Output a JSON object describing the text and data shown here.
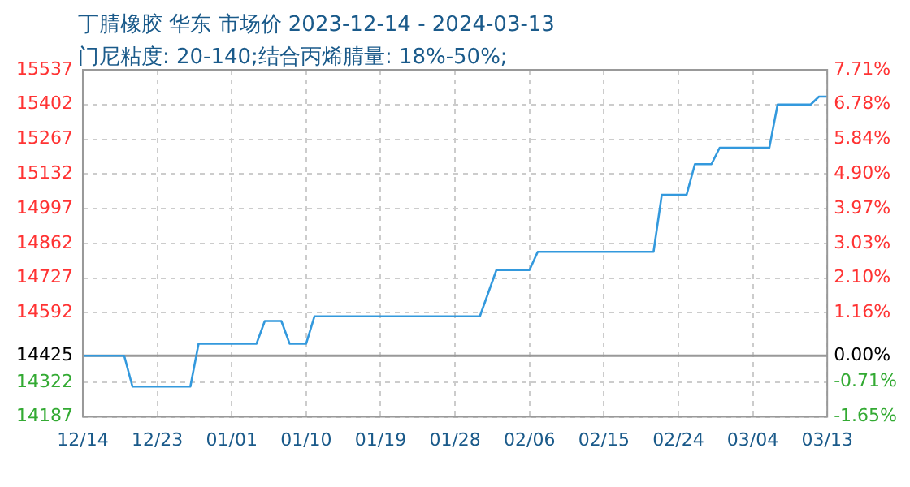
{
  "chart_data": {
    "type": "line",
    "title": "丁腈橡胶 华东 市场价 2023-12-14 - 2024-03-13",
    "subtitle": "门尼粘度: 20-140;结合丙烯腈量: 18%-50%;",
    "x": [
      "2023-12-14",
      "2023-12-19",
      "2023-12-20",
      "2023-12-27",
      "2023-12-28",
      "2024-01-04",
      "2024-01-05",
      "2024-01-07",
      "2024-01-08",
      "2024-01-10",
      "2024-01-11",
      "2024-01-31",
      "2024-02-02",
      "2024-02-06",
      "2024-02-07",
      "2024-02-21",
      "2024-02-22",
      "2024-02-25",
      "2024-02-26",
      "2024-02-28",
      "2024-02-29",
      "2024-03-06",
      "2024-03-07",
      "2024-03-11",
      "2024-03-12",
      "2024-03-13"
    ],
    "series": [
      {
        "color": "#3399dd",
        "values": [
          14425,
          14425,
          14305,
          14305,
          14472,
          14472,
          14560,
          14560,
          14472,
          14472,
          14578,
          14578,
          14758,
          14758,
          14829,
          14829,
          15051,
          15051,
          15170,
          15170,
          15234,
          15234,
          15402,
          15402,
          15433,
          15433
        ]
      }
    ],
    "xlim": [
      "2023-12-14",
      "2024-03-13"
    ],
    "xticks": [
      {
        "value": "2023-12-14",
        "label": "12/14"
      },
      {
        "value": "2023-12-23",
        "label": "12/23"
      },
      {
        "value": "2024-01-01",
        "label": "01/01"
      },
      {
        "value": "2024-01-10",
        "label": "01/10"
      },
      {
        "value": "2024-01-19",
        "label": "01/19"
      },
      {
        "value": "2024-01-28",
        "label": "01/28"
      },
      {
        "value": "2024-02-06",
        "label": "02/06"
      },
      {
        "value": "2024-02-15",
        "label": "02/15"
      },
      {
        "value": "2024-02-24",
        "label": "02/24"
      },
      {
        "value": "2024-03-04",
        "label": "03/04"
      },
      {
        "value": "2024-03-13",
        "label": "03/13"
      }
    ],
    "ylim": [
      14187,
      15537
    ],
    "yticks": [
      14187,
      14322,
      14425,
      14592,
      14727,
      14862,
      14997,
      15132,
      15267,
      15402,
      15537
    ],
    "y2lim": [
      -1.65,
      7.71
    ],
    "y2ticks": [
      {
        "value": -1.65,
        "label": "-1.65%"
      },
      {
        "value": -0.71,
        "label": "-0.71%"
      },
      {
        "value": 0,
        "label": "0.00%"
      },
      {
        "value": 1.16,
        "label": "1.16%"
      },
      {
        "value": 2.1,
        "label": "2.10%"
      },
      {
        "value": 3.03,
        "label": "3.03%"
      },
      {
        "value": 3.97,
        "label": "3.97%"
      },
      {
        "value": 4.9,
        "label": "4.90%"
      },
      {
        "value": 5.84,
        "label": "5.84%"
      },
      {
        "value": 6.78,
        "label": "6.78%"
      },
      {
        "value": 7.71,
        "label": "7.71%"
      }
    ],
    "ref_lines": [
      {
        "axis": "y",
        "value": 14425,
        "color": "#999999"
      }
    ],
    "grid": true,
    "legend": false,
    "marker": "none",
    "line_style": "solid"
  }
}
